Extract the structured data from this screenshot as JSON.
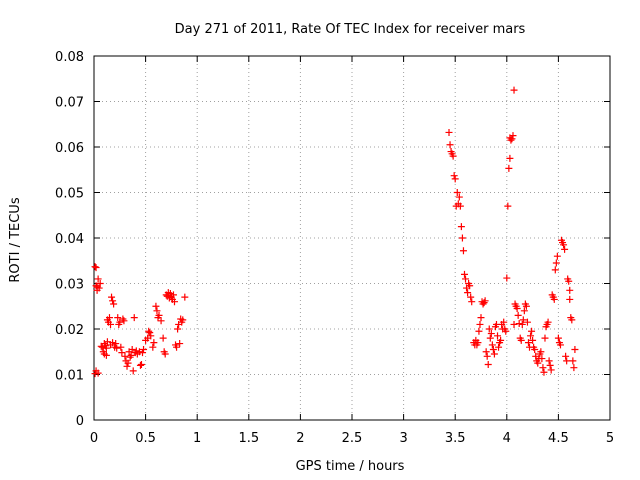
{
  "chart_data": {
    "type": "scatter",
    "title": "Day 271 of 2011, Rate Of TEC Index for receiver mars",
    "xlabel": "GPS time / hours",
    "ylabel": "ROTI / TECUs",
    "xlim": [
      0,
      5
    ],
    "ylim": [
      0,
      0.08
    ],
    "grid": true,
    "marker": "+",
    "color": "#ff0000",
    "x_ticks": [
      0,
      0.5,
      1,
      1.5,
      2,
      2.5,
      3,
      3.5,
      4,
      4.5,
      5
    ],
    "x_tick_labels": [
      "0",
      "0.5",
      "1",
      "1.5",
      "2",
      "2.5",
      "3",
      "3.5",
      "4",
      "4.5",
      "5"
    ],
    "y_ticks": [
      0,
      0.01,
      0.02,
      0.03,
      0.04,
      0.05,
      0.06,
      0.07,
      0.08
    ],
    "y_tick_labels": [
      "0",
      "0.01",
      "0.02",
      "0.03",
      "0.04",
      "0.05",
      "0.06",
      "0.07",
      "0.08"
    ],
    "series": [
      {
        "name": "ROTI",
        "points": [
          [
            0.01,
            0.0337
          ],
          [
            0.02,
            0.0335
          ],
          [
            0.02,
            0.0295
          ],
          [
            0.03,
            0.0285
          ],
          [
            0.01,
            0.0102
          ],
          [
            0.02,
            0.0108
          ],
          [
            0.04,
            0.0103
          ],
          [
            0.03,
            0.0292
          ],
          [
            0.05,
            0.029
          ],
          [
            0.04,
            0.031
          ],
          [
            0.06,
            0.03
          ],
          [
            0.07,
            0.0162
          ],
          [
            0.08,
            0.016
          ],
          [
            0.09,
            0.015
          ],
          [
            0.1,
            0.0168
          ],
          [
            0.11,
            0.0163
          ],
          [
            0.12,
            0.0158
          ],
          [
            0.13,
            0.0172
          ],
          [
            0.1,
            0.0145
          ],
          [
            0.12,
            0.0142
          ],
          [
            0.13,
            0.022
          ],
          [
            0.14,
            0.0215
          ],
          [
            0.15,
            0.0225
          ],
          [
            0.16,
            0.021
          ],
          [
            0.17,
            0.027
          ],
          [
            0.18,
            0.0262
          ],
          [
            0.19,
            0.0255
          ],
          [
            0.16,
            0.0165
          ],
          [
            0.18,
            0.017
          ],
          [
            0.2,
            0.016
          ],
          [
            0.21,
            0.0168
          ],
          [
            0.22,
            0.0158
          ],
          [
            0.23,
            0.0225
          ],
          [
            0.24,
            0.021
          ],
          [
            0.25,
            0.0215
          ],
          [
            0.26,
            0.016
          ],
          [
            0.27,
            0.0148
          ],
          [
            0.28,
            0.0222
          ],
          [
            0.29,
            0.0218
          ],
          [
            0.3,
            0.014
          ],
          [
            0.31,
            0.013
          ],
          [
            0.32,
            0.0118
          ],
          [
            0.33,
            0.0125
          ],
          [
            0.34,
            0.015
          ],
          [
            0.35,
            0.0138
          ],
          [
            0.36,
            0.0142
          ],
          [
            0.37,
            0.0155
          ],
          [
            0.38,
            0.0108
          ],
          [
            0.39,
            0.0225
          ],
          [
            0.4,
            0.0148
          ],
          [
            0.41,
            0.0152
          ],
          [
            0.42,
            0.0145
          ],
          [
            0.44,
            0.015
          ],
          [
            0.45,
            0.012
          ],
          [
            0.46,
            0.0122
          ],
          [
            0.47,
            0.0148
          ],
          [
            0.48,
            0.0155
          ],
          [
            0.5,
            0.0175
          ],
          [
            0.52,
            0.018
          ],
          [
            0.53,
            0.0195
          ],
          [
            0.54,
            0.0192
          ],
          [
            0.55,
            0.0185
          ],
          [
            0.57,
            0.016
          ],
          [
            0.58,
            0.017
          ],
          [
            0.6,
            0.025
          ],
          [
            0.61,
            0.024
          ],
          [
            0.62,
            0.0225
          ],
          [
            0.63,
            0.023
          ],
          [
            0.65,
            0.0218
          ],
          [
            0.67,
            0.018
          ],
          [
            0.68,
            0.015
          ],
          [
            0.69,
            0.0145
          ],
          [
            0.7,
            0.0275
          ],
          [
            0.71,
            0.0272
          ],
          [
            0.72,
            0.028
          ],
          [
            0.73,
            0.0268
          ],
          [
            0.74,
            0.0278
          ],
          [
            0.75,
            0.027
          ],
          [
            0.76,
            0.0265
          ],
          [
            0.77,
            0.0275
          ],
          [
            0.78,
            0.026
          ],
          [
            0.79,
            0.0165
          ],
          [
            0.8,
            0.016
          ],
          [
            0.81,
            0.02
          ],
          [
            0.82,
            0.021
          ],
          [
            0.83,
            0.0168
          ],
          [
            0.84,
            0.0222
          ],
          [
            0.85,
            0.0215
          ],
          [
            0.86,
            0.022
          ],
          [
            0.88,
            0.027
          ],
          [
            3.44,
            0.0632
          ],
          [
            3.45,
            0.0605
          ],
          [
            3.46,
            0.059
          ],
          [
            3.47,
            0.0585
          ],
          [
            3.48,
            0.058
          ],
          [
            3.49,
            0.0537
          ],
          [
            3.5,
            0.053
          ],
          [
            3.51,
            0.047
          ],
          [
            3.52,
            0.05
          ],
          [
            3.53,
            0.0475
          ],
          [
            3.54,
            0.049
          ],
          [
            3.55,
            0.047
          ],
          [
            3.56,
            0.0425
          ],
          [
            3.57,
            0.04
          ],
          [
            3.58,
            0.0372
          ],
          [
            3.59,
            0.032
          ],
          [
            3.6,
            0.031
          ],
          [
            3.61,
            0.029
          ],
          [
            3.62,
            0.028
          ],
          [
            3.63,
            0.03
          ],
          [
            3.64,
            0.0295
          ],
          [
            3.65,
            0.027
          ],
          [
            3.66,
            0.026
          ],
          [
            3.68,
            0.017
          ],
          [
            3.69,
            0.0165
          ],
          [
            3.7,
            0.0175
          ],
          [
            3.71,
            0.0165
          ],
          [
            3.72,
            0.017
          ],
          [
            3.73,
            0.0195
          ],
          [
            3.74,
            0.021
          ],
          [
            3.75,
            0.0225
          ],
          [
            3.76,
            0.026
          ],
          [
            3.77,
            0.0255
          ],
          [
            3.78,
            0.0258
          ],
          [
            3.79,
            0.0262
          ],
          [
            3.8,
            0.015
          ],
          [
            3.81,
            0.014
          ],
          [
            3.82,
            0.0122
          ],
          [
            3.83,
            0.02
          ],
          [
            3.84,
            0.018
          ],
          [
            3.85,
            0.019
          ],
          [
            3.86,
            0.0165
          ],
          [
            3.87,
            0.0155
          ],
          [
            3.88,
            0.0145
          ],
          [
            3.89,
            0.0205
          ],
          [
            3.9,
            0.021
          ],
          [
            3.91,
            0.0185
          ],
          [
            3.92,
            0.016
          ],
          [
            3.93,
            0.017
          ],
          [
            3.94,
            0.0175
          ],
          [
            3.95,
            0.021
          ],
          [
            3.96,
            0.02
          ],
          [
            3.97,
            0.0215
          ],
          [
            3.98,
            0.02
          ],
          [
            3.99,
            0.0195
          ],
          [
            4.0,
            0.0312
          ],
          [
            4.01,
            0.047
          ],
          [
            4.02,
            0.0553
          ],
          [
            4.03,
            0.0575
          ],
          [
            4.03,
            0.062
          ],
          [
            4.04,
            0.0615
          ],
          [
            4.05,
            0.0618
          ],
          [
            4.06,
            0.0625
          ],
          [
            4.07,
            0.0725
          ],
          [
            4.07,
            0.021
          ],
          [
            4.08,
            0.0255
          ],
          [
            4.09,
            0.025
          ],
          [
            4.1,
            0.0245
          ],
          [
            4.11,
            0.023
          ],
          [
            4.12,
            0.0212
          ],
          [
            4.13,
            0.018
          ],
          [
            4.14,
            0.0175
          ],
          [
            4.15,
            0.021
          ],
          [
            4.16,
            0.022
          ],
          [
            4.17,
            0.024
          ],
          [
            4.18,
            0.0255
          ],
          [
            4.19,
            0.025
          ],
          [
            4.2,
            0.0215
          ],
          [
            4.21,
            0.017
          ],
          [
            4.22,
            0.016
          ],
          [
            4.23,
            0.0185
          ],
          [
            4.24,
            0.0195
          ],
          [
            4.25,
            0.0175
          ],
          [
            4.26,
            0.016
          ],
          [
            4.27,
            0.0155
          ],
          [
            4.28,
            0.014
          ],
          [
            4.29,
            0.013
          ],
          [
            4.3,
            0.0125
          ],
          [
            4.31,
            0.0135
          ],
          [
            4.32,
            0.0145
          ],
          [
            4.33,
            0.015
          ],
          [
            4.34,
            0.0135
          ],
          [
            4.35,
            0.0115
          ],
          [
            4.36,
            0.0105
          ],
          [
            4.37,
            0.018
          ],
          [
            4.38,
            0.0205
          ],
          [
            4.39,
            0.021
          ],
          [
            4.4,
            0.0215
          ],
          [
            4.41,
            0.013
          ],
          [
            4.42,
            0.012
          ],
          [
            4.43,
            0.011
          ],
          [
            4.44,
            0.0275
          ],
          [
            4.45,
            0.027
          ],
          [
            4.46,
            0.0265
          ],
          [
            4.47,
            0.033
          ],
          [
            4.48,
            0.0345
          ],
          [
            4.49,
            0.036
          ],
          [
            4.5,
            0.018
          ],
          [
            4.51,
            0.017
          ],
          [
            4.52,
            0.0165
          ],
          [
            4.53,
            0.0395
          ],
          [
            4.54,
            0.039
          ],
          [
            4.55,
            0.0385
          ],
          [
            4.56,
            0.0375
          ],
          [
            4.57,
            0.014
          ],
          [
            4.58,
            0.013
          ],
          [
            4.59,
            0.031
          ],
          [
            4.6,
            0.0305
          ],
          [
            4.61,
            0.0265
          ],
          [
            4.62,
            0.0225
          ],
          [
            4.63,
            0.022
          ],
          [
            4.64,
            0.013
          ],
          [
            4.65,
            0.0115
          ],
          [
            4.66,
            0.0155
          ],
          [
            4.61,
            0.0285
          ]
        ]
      }
    ]
  }
}
